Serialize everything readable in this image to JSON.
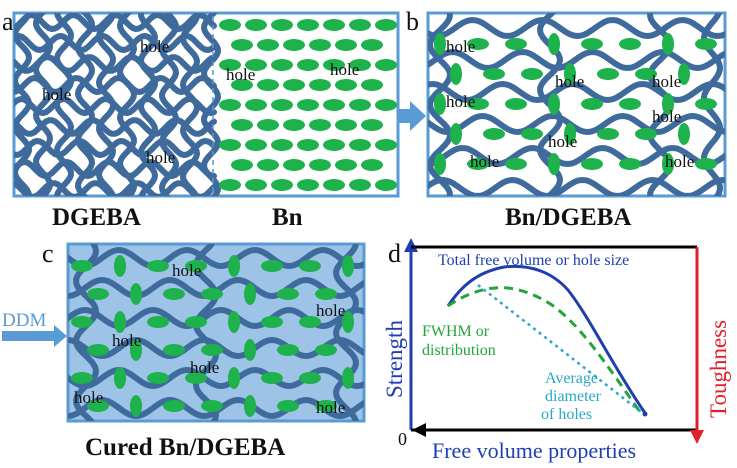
{
  "panels": {
    "a": {
      "letter": "a",
      "caption_left": "DGEBA",
      "caption_right": "Bn",
      "hole_labels": [
        "hole",
        "hole",
        "hole",
        "hole",
        "hole"
      ]
    },
    "b": {
      "letter": "b",
      "caption": "Bn/DGEBA",
      "hole_labels": [
        "hole",
        "hole",
        "hole",
        "hole",
        "hole",
        "hole",
        "hole",
        "hole"
      ]
    },
    "c": {
      "letter": "c",
      "caption": "Cured Bn/DGEBA",
      "side_label": "DDM",
      "hole_labels": [
        "hole",
        "hole",
        "hole",
        "hole",
        "hole",
        "hole"
      ]
    },
    "d": {
      "letter": "d",
      "curve_labels": {
        "total": "Total free volume or hole size",
        "fwhm_1": "FWHM or",
        "fwhm_2": "distribution",
        "avg_1": "Average",
        "avg_2": "diameter",
        "avg_3": "of holes"
      },
      "y_left_label": "Strength",
      "y_right_label": "Toughness",
      "x_label": "Free volume properties",
      "origin": "0"
    }
  },
  "colors": {
    "network": "#3f6a9c",
    "particle": "#1db24b",
    "frame": "#5a9bd5",
    "arrow": "#5b9bd5",
    "cured_fill": "#9dc3e6",
    "total_curve": "#1f3fae",
    "fwhm_curve": "#22a63a",
    "avg_curve": "#2aa7c9",
    "strength_axis": "#1f3fae",
    "toughness_axis": "#e2202b"
  },
  "chart_data": {
    "type": "line",
    "xlabel": "Free volume properties",
    "ylabel": "Strength",
    "ylabel_right": "Toughness",
    "series": [
      {
        "name": "Total free volume or hole size",
        "x": [
          0.08,
          0.25,
          0.35,
          0.5,
          0.7,
          0.9
        ],
        "y": [
          0.62,
          0.88,
          0.9,
          0.83,
          0.45,
          0.05
        ]
      },
      {
        "name": "FWHM or distribution",
        "x": [
          0.08,
          0.25,
          0.35,
          0.5,
          0.7,
          0.88
        ],
        "y": [
          0.62,
          0.74,
          0.76,
          0.66,
          0.3,
          0.05
        ]
      },
      {
        "name": "Average diameter of holes",
        "x": [
          0.15,
          0.9
        ],
        "y": [
          0.85,
          0.05
        ]
      }
    ]
  }
}
